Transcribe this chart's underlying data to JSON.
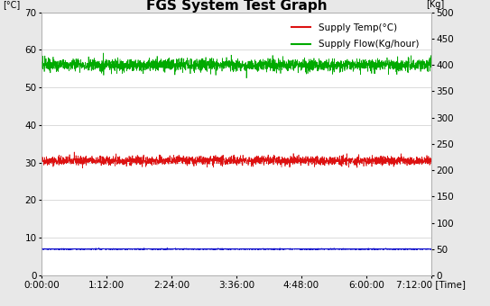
{
  "title": "FGS System Test Graph",
  "ylim_left": [
    0.0,
    70.0
  ],
  "ylim_right": [
    0.0,
    500.0
  ],
  "yticks_left": [
    0.0,
    10.0,
    20.0,
    30.0,
    40.0,
    50.0,
    60.0,
    70.0
  ],
  "yticks_right": [
    0.0,
    50.0,
    100.0,
    150.0,
    200.0,
    250.0,
    300.0,
    350.0,
    400.0,
    450.0,
    500.0
  ],
  "xtick_labels": [
    "0:00:00",
    "1:12:00",
    "2:24:00",
    "3:36:00",
    "4:48:00",
    "6:00:00",
    "7:12:00 [Time]"
  ],
  "total_minutes": 432,
  "supply_temp_mean": 30.5,
  "supply_temp_noise": 0.6,
  "supply_flow_mean": 56.0,
  "supply_flow_noise": 0.8,
  "blue_line_mean": 7.0,
  "blue_line_noise": 0.08,
  "color_temp": "#dd1111",
  "color_flow": "#00aa00",
  "color_blue": "#1111cc",
  "legend_temp": "Supply Temp(°C)",
  "legend_flow": "Supply Flow(Kg/hour)",
  "background_color": "#e8e8e8",
  "plot_bg_color": "#ffffff",
  "grid_color": "#cccccc",
  "title_fontsize": 11,
  "tick_fontsize": 7.5,
  "legend_fontsize": 7.5,
  "n_points": 2500
}
